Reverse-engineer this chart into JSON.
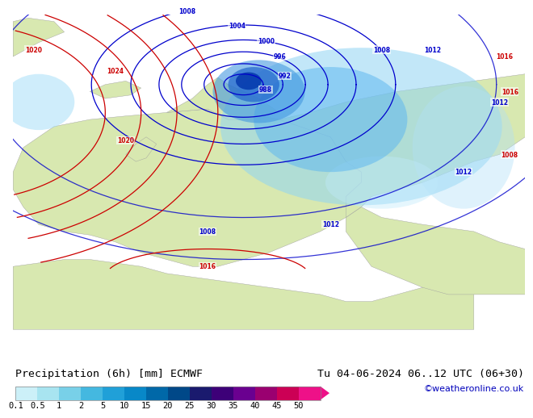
{
  "title_left": "Precipitation (6h) [mm] ECMWF",
  "title_right": "Tu 04-06-2024 06..12 UTC (06+30)",
  "credit": "©weatheronline.co.uk",
  "colorbar_labels": [
    "0.1",
    "0.5",
    "1",
    "2",
    "5",
    "10",
    "15",
    "20",
    "25",
    "30",
    "35",
    "40",
    "45",
    "50"
  ],
  "colorbar_colors": [
    "#ccf0f8",
    "#a8e4f0",
    "#78d0e8",
    "#44b8e0",
    "#20a0d8",
    "#0888c8",
    "#0068a8",
    "#004888",
    "#1a1a6e",
    "#3d0078",
    "#6a0090",
    "#9a0070",
    "#cc0055",
    "#ee1188"
  ],
  "ocean_color": "#b8d8f0",
  "land_color": "#d8e8b0",
  "bg_color": "#ffffff",
  "title_fontsize": 9.5,
  "credit_fontsize": 8,
  "label_fontsize": 7.5,
  "contour_blue": "#0000cc",
  "contour_red": "#cc0000"
}
